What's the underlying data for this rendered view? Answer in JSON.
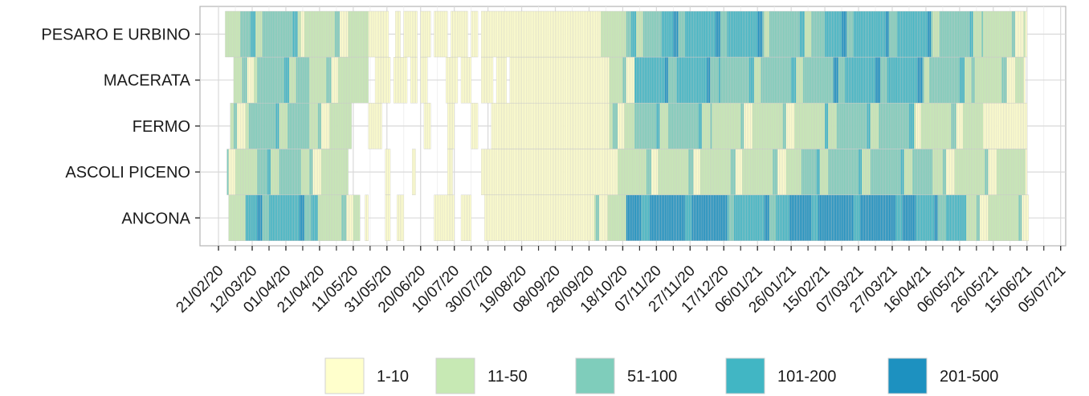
{
  "chart_data": {
    "type": "heatmap",
    "title": "",
    "xlabel": "",
    "ylabel": "",
    "x_axis_type": "date",
    "xlim": [
      "2020-02-10",
      "2021-07-08"
    ],
    "rows": [
      "PESARO E URBINO",
      "MACERATA",
      "FERMO",
      "ASCOLI PICENO",
      "ANCONA"
    ],
    "x_ticks": [
      "21/02/20",
      "12/03/20",
      "01/04/20",
      "21/04/20",
      "11/05/20",
      "31/05/20",
      "20/06/20",
      "10/07/20",
      "30/07/20",
      "19/08/20",
      "08/09/20",
      "28/09/20",
      "18/10/20",
      "07/11/20",
      "27/11/20",
      "17/12/20",
      "06/01/21",
      "26/01/21",
      "15/02/21",
      "07/03/21",
      "27/03/21",
      "16/04/21",
      "06/05/21",
      "26/05/21",
      "15/06/21",
      "05/07/21"
    ],
    "legend": {
      "position": "bottom",
      "classes": [
        {
          "label": "1-10",
          "color": "#ffffcc"
        },
        {
          "label": "11-50",
          "color": "#c7e9b4"
        },
        {
          "label": "51-100",
          "color": "#7fcdbb"
        },
        {
          "label": "101-200",
          "color": "#41b6c4"
        },
        {
          "label": "201-500",
          "color": "#1d91c0"
        }
      ]
    },
    "grid": true,
    "series": [
      {
        "row": "PESARO E URBINO",
        "start": "2020-02-25",
        "end": "2021-06-14",
        "missing": [
          [
            "2020-06-01",
            "2020-06-05"
          ],
          [
            "2020-06-08",
            "2020-06-10"
          ],
          [
            "2020-06-18",
            "2020-06-20"
          ],
          [
            "2020-06-26",
            "2020-06-28"
          ],
          [
            "2020-07-06",
            "2020-07-08"
          ],
          [
            "2020-07-18",
            "2020-07-20"
          ],
          [
            "2020-07-24",
            "2020-07-26"
          ]
        ],
        "levels": [
          [
            "2020-02-25",
            "2020-03-05",
            1
          ],
          [
            "2020-03-05",
            "2020-04-10",
            2
          ],
          [
            "2020-04-10",
            "2020-05-20",
            1
          ],
          [
            "2020-05-20",
            "2020-09-30",
            0
          ],
          [
            "2020-09-30",
            "2020-10-20",
            1
          ],
          [
            "2020-10-20",
            "2020-11-10",
            2
          ],
          [
            "2020-11-10",
            "2021-01-10",
            3
          ],
          [
            "2021-01-10",
            "2021-02-15",
            2
          ],
          [
            "2021-02-15",
            "2021-04-20",
            3
          ],
          [
            "2021-04-20",
            "2021-05-20",
            2
          ],
          [
            "2021-05-20",
            "2021-06-14",
            1
          ]
        ]
      },
      {
        "row": "MACERATA",
        "start": "2020-03-01",
        "end": "2021-06-13",
        "missing": [
          [
            "2020-05-20",
            "2020-05-24"
          ],
          [
            "2020-06-02",
            "2020-06-04"
          ],
          [
            "2020-06-12",
            "2020-06-14"
          ],
          [
            "2020-06-18",
            "2020-06-20"
          ],
          [
            "2020-06-24",
            "2020-07-05"
          ],
          [
            "2020-07-12",
            "2020-07-14"
          ],
          [
            "2020-07-20",
            "2020-07-26"
          ],
          [
            "2020-08-02",
            "2020-08-04"
          ],
          [
            "2020-08-10",
            "2020-08-12"
          ]
        ],
        "levels": [
          [
            "2020-03-01",
            "2020-03-15",
            1
          ],
          [
            "2020-03-15",
            "2020-04-15",
            2
          ],
          [
            "2020-04-15",
            "2020-05-20",
            1
          ],
          [
            "2020-05-20",
            "2020-10-10",
            0
          ],
          [
            "2020-10-10",
            "2020-10-25",
            1
          ],
          [
            "2020-10-25",
            "2020-12-15",
            3
          ],
          [
            "2020-12-15",
            "2021-02-20",
            2
          ],
          [
            "2021-02-20",
            "2021-04-15",
            3
          ],
          [
            "2021-04-15",
            "2021-05-15",
            2
          ],
          [
            "2021-05-15",
            "2021-06-13",
            1
          ]
        ]
      },
      {
        "row": "FERMO",
        "start": "2020-02-28",
        "end": "2021-06-14",
        "missing": [
          [
            "2020-05-10",
            "2020-05-20"
          ],
          [
            "2020-05-28",
            "2020-06-22"
          ],
          [
            "2020-06-26",
            "2020-07-06"
          ],
          [
            "2020-07-10",
            "2020-07-20"
          ],
          [
            "2020-07-24",
            "2020-08-01"
          ]
        ],
        "levels": [
          [
            "2020-02-28",
            "2020-03-10",
            1
          ],
          [
            "2020-03-10",
            "2020-04-15",
            2
          ],
          [
            "2020-04-15",
            "2020-05-10",
            1
          ],
          [
            "2020-05-10",
            "2020-10-10",
            0
          ],
          [
            "2020-10-10",
            "2020-10-25",
            1
          ],
          [
            "2020-10-25",
            "2020-12-10",
            2
          ],
          [
            "2020-12-10",
            "2021-02-15",
            1
          ],
          [
            "2021-02-15",
            "2021-04-10",
            2
          ],
          [
            "2021-04-10",
            "2021-05-20",
            1
          ],
          [
            "2021-05-20",
            "2021-06-14",
            0
          ]
        ]
      },
      {
        "row": "ASCOLI PICENO",
        "start": "2020-02-26",
        "end": "2021-06-14",
        "missing": [
          [
            "2020-05-08",
            "2020-05-30"
          ],
          [
            "2020-06-02",
            "2020-06-15"
          ],
          [
            "2020-06-17",
            "2020-07-06"
          ],
          [
            "2020-07-09",
            "2020-07-26"
          ]
        ],
        "levels": [
          [
            "2020-02-26",
            "2020-03-15",
            1
          ],
          [
            "2020-03-15",
            "2020-04-10",
            2
          ],
          [
            "2020-04-10",
            "2020-05-08",
            1
          ],
          [
            "2020-05-08",
            "2020-10-15",
            0
          ],
          [
            "2020-10-15",
            "2020-12-20",
            1
          ],
          [
            "2020-12-20",
            "2021-02-01",
            1
          ],
          [
            "2021-02-01",
            "2021-04-20",
            2
          ],
          [
            "2021-04-20",
            "2021-06-14",
            1
          ]
        ]
      },
      {
        "row": "ANCONA",
        "start": "2020-02-27",
        "end": "2021-06-15",
        "missing": [
          [
            "2020-05-15",
            "2020-05-18"
          ],
          [
            "2020-05-20",
            "2020-05-30"
          ],
          [
            "2020-06-02",
            "2020-06-06"
          ],
          [
            "2020-06-10",
            "2020-06-28"
          ],
          [
            "2020-07-10",
            "2020-07-14"
          ],
          [
            "2020-07-20",
            "2020-07-28"
          ]
        ],
        "levels": [
          [
            "2020-02-27",
            "2020-03-08",
            1
          ],
          [
            "2020-03-08",
            "2020-04-20",
            3
          ],
          [
            "2020-04-20",
            "2020-05-15",
            1
          ],
          [
            "2020-05-15",
            "2020-10-01",
            0
          ],
          [
            "2020-10-01",
            "2020-10-20",
            1
          ],
          [
            "2020-10-20",
            "2020-12-20",
            4
          ],
          [
            "2020-12-20",
            "2021-01-25",
            3
          ],
          [
            "2021-01-25",
            "2021-04-10",
            4
          ],
          [
            "2021-04-10",
            "2021-05-10",
            3
          ],
          [
            "2021-05-10",
            "2021-06-15",
            1
          ]
        ]
      }
    ]
  }
}
